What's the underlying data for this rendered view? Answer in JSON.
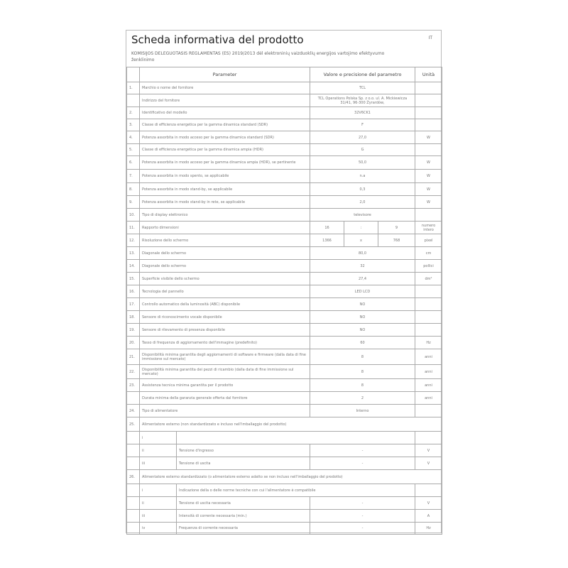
{
  "title": "Scheda informativa del prodotto",
  "language": "IT",
  "subtitle": "KOMISIJOS DELEGUOTASIS REGLAMENTAS (ES) 2019/2013 dėl elektroninių vaizduoklių energijos vartojimo efektyvumo ženklinimo",
  "headers": {
    "parameter": "Parameter",
    "value": "Valore e precisione del parametro",
    "unit": "Unità"
  },
  "rows": [
    {
      "n": "1.",
      "p": "Marchio o nome del fornitore",
      "v": "TCL",
      "u": ""
    },
    {
      "n": "",
      "p": "Indirizzo del fornitore",
      "v": "TCL Operations Polska Sp. z o.o. ul. A. Mickiewicza 31/41, 96-300 Żyrardów,",
      "u": ""
    },
    {
      "n": "2.",
      "p": "Identificativo del modello",
      "v": "32V6CK1",
      "u": ""
    },
    {
      "n": "3.",
      "p": "Classe di efficienza energetica per la gamma dinamica standard (SDR)",
      "v": "F",
      "u": ""
    },
    {
      "n": "4.",
      "p": "Potenza assorbita in modo acceso per la gamma dinamica standard (SDR)",
      "v": "27,0",
      "u": "W"
    },
    {
      "n": "5.",
      "p": "Classe di efficienza energetica per la gamma dinamica ampia (HDR)",
      "v": "G",
      "u": ""
    },
    {
      "n": "6.",
      "p": "Potenza assorbita in modo acceso per la gamma dinamica ampia (HDR), se pertinente",
      "v": "50,0",
      "u": "W"
    },
    {
      "n": "7.",
      "p": "Potenza assorbita in modo spento, se applicabile",
      "v": "n.a",
      "u": "W"
    },
    {
      "n": "8.",
      "p": "Potenza assorbita in modo stand-by, se applicabile",
      "v": "0,3",
      "u": "W"
    },
    {
      "n": "9.",
      "p": "Potenza assorbita in modo stand-by in rete, se applicabile",
      "v": "2,0",
      "u": "W"
    },
    {
      "n": "10.",
      "p": "Tipo di display elettronico",
      "v": "televisore",
      "u": ""
    },
    {
      "n": "11.",
      "p": "Rapporto dimensioni",
      "v3": [
        "16",
        ":",
        "9"
      ],
      "u": "numero intero"
    },
    {
      "n": "12.",
      "p": "Risoluzione dello schermo",
      "v3": [
        "1366",
        "x",
        "768"
      ],
      "u": "pixel"
    },
    {
      "n": "13.",
      "p": "Diagonale dello schermo",
      "v": "80,0",
      "u": "cm"
    },
    {
      "n": "14.",
      "p": "Diagonale dello schermo",
      "v": "32",
      "u": "pollici"
    },
    {
      "n": "15.",
      "p": "Superficie visibile dello schermo",
      "v": "27,4",
      "u": "dm²"
    },
    {
      "n": "16.",
      "p": "Tecnologia del pannello",
      "v": "LED LCD",
      "u": ""
    },
    {
      "n": "17.",
      "p": "Controllo automatico della luminosità (ABC) disponibile",
      "v": "NO",
      "u": ""
    },
    {
      "n": "18.",
      "p": "Sensore di riconoscimento vocale disponibile",
      "v": "NO",
      "u": ""
    },
    {
      "n": "19.",
      "p": "Sensore di rilevamento di presenza disponibile",
      "v": "NO",
      "u": ""
    },
    {
      "n": "20.",
      "p": "Tasso di frequenza di aggiornamento dell'immagine (predefinito)",
      "v": "60",
      "u": "Hz"
    },
    {
      "n": "21.",
      "p": "Disponibilità minima garantita degli aggiornamenti di software e firmware (dalla data di fine immissione sul mercato)",
      "v": "8",
      "u": "anni"
    },
    {
      "n": "22.",
      "p": "Disponibilità minima garantita dei pezzi di ricambio (dalla data di fine immissione sul mercato)",
      "v": "8",
      "u": "anni"
    },
    {
      "n": "23.",
      "p": "Assistenza tecnica minima garantita per il prodotto",
      "v": "8",
      "u": "anni"
    },
    {
      "n": "",
      "p": "Durata minima della garanzia generale offerta dal fornitore",
      "v": "2",
      "u": "anni"
    },
    {
      "n": "24.",
      "p": "Tipo di alimentatore",
      "v": "Interno",
      "u": ""
    },
    {
      "n": "25.",
      "section": "Alimentatore esterno (non standardizzato e incluso nell'imballaggio del prodotto)"
    },
    {
      "n": "",
      "s": "i",
      "p": "",
      "span": true
    },
    {
      "n": "",
      "s": "ii",
      "p": "Tensione d'ingresso",
      "v": "-",
      "u": "V"
    },
    {
      "n": "",
      "s": "iii",
      "p": "Tensione di uscita",
      "v": "-",
      "u": "V"
    },
    {
      "n": "26.",
      "section": "Alimentatore esterno standardizzato (o alimentatore esterno adatto se non incluso nell'imballaggio del prodotto)"
    },
    {
      "n": "",
      "s": "i",
      "p": "Indicazione della o delle norme tecniche con cui l'alimentatore è compatibile",
      "span": true
    },
    {
      "n": "",
      "s": "ii",
      "p": "Tensione di uscita necessaria",
      "v": "-",
      "u": "V"
    },
    {
      "n": "",
      "s": "iii",
      "p": "Intensità di corrente necessaria (min.)",
      "v": "-",
      "u": "A"
    },
    {
      "n": "",
      "s": "iv",
      "p": "Frequenza di corrente necessaria",
      "v": "-",
      "u": "Hz"
    }
  ]
}
